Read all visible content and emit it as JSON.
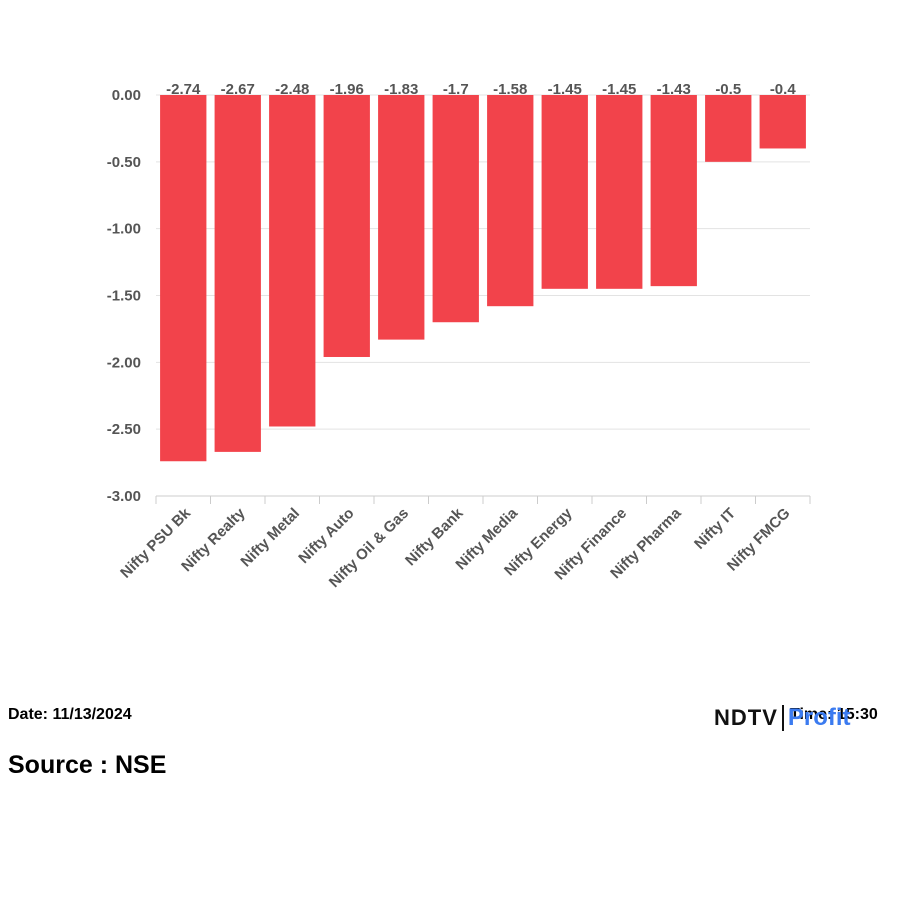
{
  "chart_data": {
    "type": "bar",
    "categories": [
      "Nifty PSU Bk",
      "Nifty Realty",
      "Nifty Metal",
      "Nifty Auto",
      "Nifty Oil & Gas",
      "Nifty Bank",
      "Nifty Media",
      "Nifty Energy",
      "Nifty Finance",
      "Nifty Pharma",
      "Nifty IT",
      "Nifty FMCG"
    ],
    "values": [
      -2.74,
      -2.67,
      -2.48,
      -1.96,
      -1.83,
      -1.7,
      -1.58,
      -1.45,
      -1.45,
      -1.43,
      -0.5,
      -0.4
    ],
    "value_labels": [
      "-2.74",
      "-2.67",
      "-2.48",
      "-1.96",
      "-1.83",
      "-1.7",
      "-1.58",
      "-1.45",
      "-1.45",
      "-1.43",
      "-0.5",
      "-0.4"
    ],
    "yticks": [
      "0.00",
      "-0.50",
      "-1.00",
      "-1.50",
      "-2.00",
      "-2.50",
      "-3.00"
    ],
    "ytick_values": [
      0,
      -0.5,
      -1,
      -1.5,
      -2,
      -2.5,
      -3
    ],
    "ylim": [
      -3,
      0
    ],
    "bar_color": "#f2434b",
    "grid": true,
    "title": "",
    "xlabel": "",
    "ylabel": ""
  },
  "footer": {
    "date": "Date: 11/13/2024",
    "time": "Time: 15:30",
    "source": "Source : NSE"
  },
  "logo": {
    "ndtv": "NDTV",
    "profit": "Profit"
  }
}
